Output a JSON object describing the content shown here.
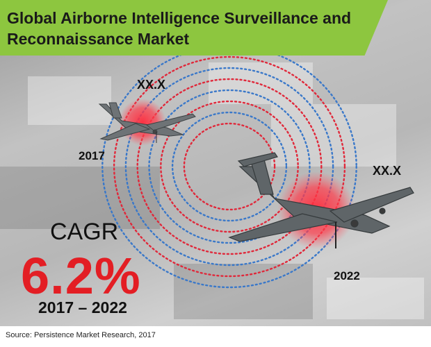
{
  "header": {
    "title_line1": "Global Airborne Intelligence Surveillance and",
    "title_line2": "Reconnaissance Market",
    "accent_color": "#8dc63f"
  },
  "markers": [
    {
      "value_label": "XX.X",
      "year": "2017",
      "color": "#e31e24"
    },
    {
      "value_label": "XX.X",
      "year": "2022",
      "color": "#e31e24"
    }
  ],
  "cagr": {
    "label": "CAGR",
    "value": "6.2%",
    "period": "2017 – 2022",
    "value_color": "#e31e24"
  },
  "rings": {
    "red_color": "#e0283a",
    "blue_color": "#3a78c9"
  },
  "icons": [
    "aircraft-small-icon",
    "aircraft-large-icon"
  ],
  "footer": {
    "source": "Source: Persistence Market Research, 2017"
  }
}
